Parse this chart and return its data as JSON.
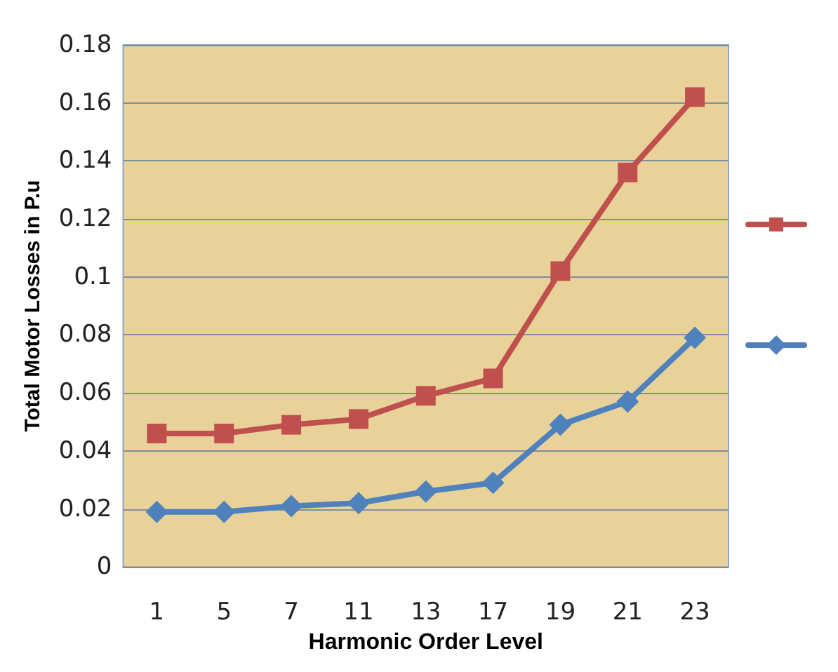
{
  "chart_data": {
    "type": "line",
    "xlabel": "Harmonic Order Level",
    "ylabel": "Total Motor Losses in P.u",
    "categories": [
      "1",
      "5",
      "7",
      "11",
      "13",
      "17",
      "19",
      "21",
      "23"
    ],
    "series": [
      {
        "color": "#c0504d",
        "marker": "square",
        "values": [
          0.046,
          0.046,
          0.049,
          0.051,
          0.059,
          0.065,
          0.102,
          0.136,
          0.162
        ]
      },
      {
        "color": "#4f81bd",
        "marker": "diamond",
        "values": [
          0.019,
          0.019,
          0.021,
          0.022,
          0.026,
          0.029,
          0.049,
          0.057,
          0.079
        ]
      }
    ],
    "ylim": [
      0,
      0.18
    ],
    "yticks": [
      0,
      0.02,
      0.04,
      0.06,
      0.08,
      0.1,
      0.12,
      0.14,
      0.16,
      0.18
    ],
    "grid": "y",
    "line_style": "solid"
  }
}
